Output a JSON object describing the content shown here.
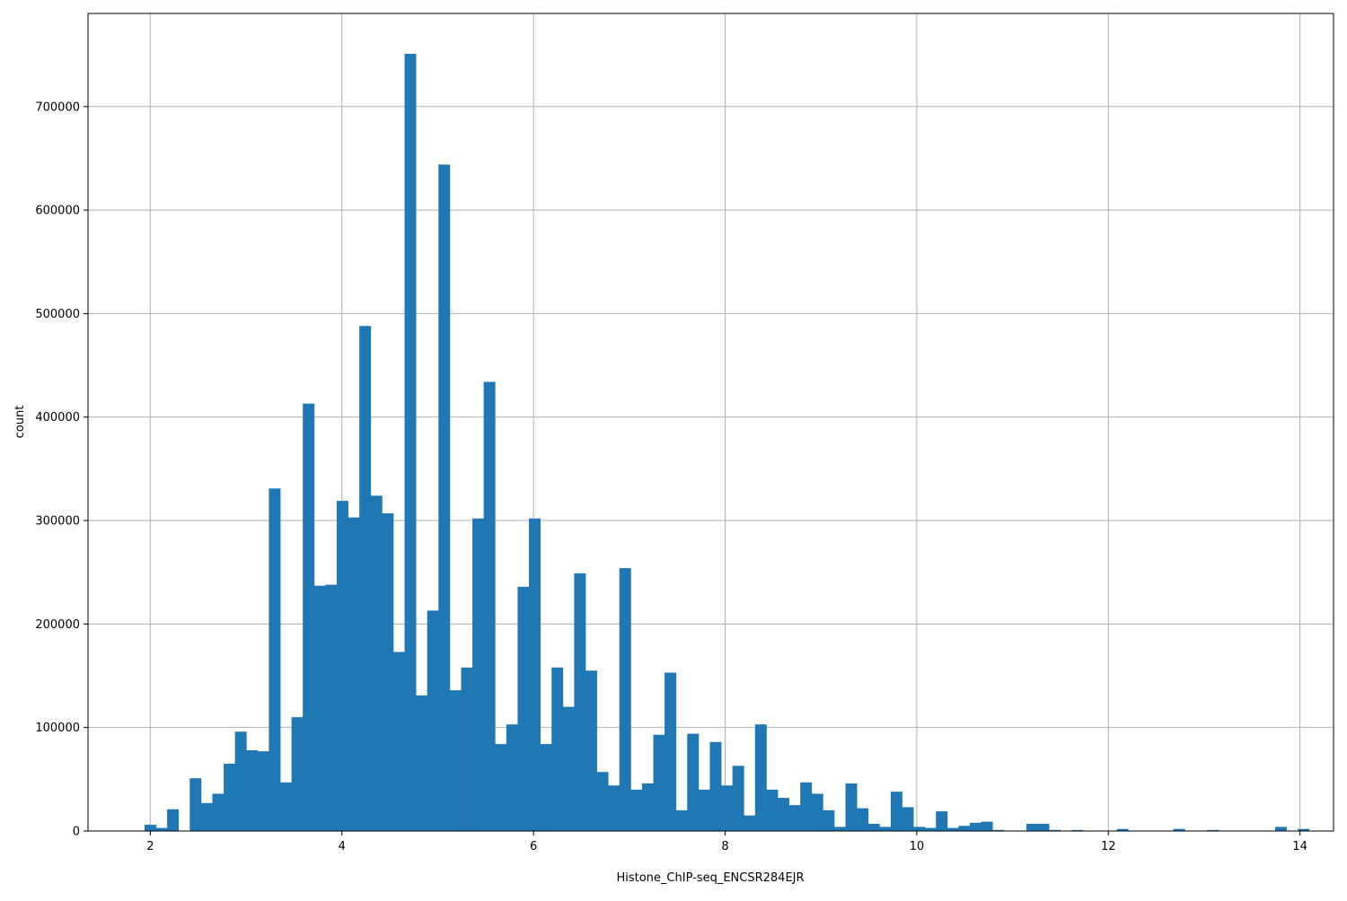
{
  "chart_data": {
    "type": "bar",
    "title": "",
    "xlabel": "Histone_ChIP-seq_ENCSR284EJR",
    "ylabel": "count",
    "xlim": [
      1.35,
      14.35
    ],
    "ylim": [
      0,
      790000
    ],
    "grid": true,
    "x_ticks": [
      2,
      4,
      6,
      8,
      10,
      12,
      14
    ],
    "y_ticks": [
      0,
      100000,
      200000,
      300000,
      400000,
      500000,
      600000,
      700000
    ],
    "bar_color": "#1f77b4",
    "bins": {
      "start": 1.94,
      "width": 0.118,
      "counts": [
        6000,
        3000,
        21000,
        0,
        51000,
        27000,
        36000,
        65000,
        96000,
        78000,
        77000,
        331000,
        47000,
        110000,
        413000,
        237000,
        238000,
        319000,
        303000,
        488000,
        324000,
        307000,
        173000,
        751000,
        131000,
        213000,
        644000,
        136000,
        158000,
        302000,
        434000,
        84000,
        103000,
        236000,
        302000,
        84000,
        158000,
        120000,
        249000,
        155000,
        57000,
        44000,
        254000,
        40000,
        46000,
        93000,
        153000,
        20000,
        94000,
        40000,
        86000,
        44000,
        63000,
        15000,
        103000,
        40000,
        32000,
        25000,
        47000,
        36000,
        20000,
        4000,
        46000,
        22000,
        7000,
        4000,
        38000,
        23000,
        4000,
        3000,
        19000,
        3000,
        5000,
        8000,
        9000,
        1000,
        0,
        0,
        7000,
        7000,
        1000,
        0,
        1000,
        0,
        0,
        0,
        2000,
        0,
        0,
        0,
        0,
        2000,
        0,
        0,
        1000,
        0,
        0,
        0,
        0,
        0,
        4000,
        0,
        2000,
        0
      ]
    }
  }
}
